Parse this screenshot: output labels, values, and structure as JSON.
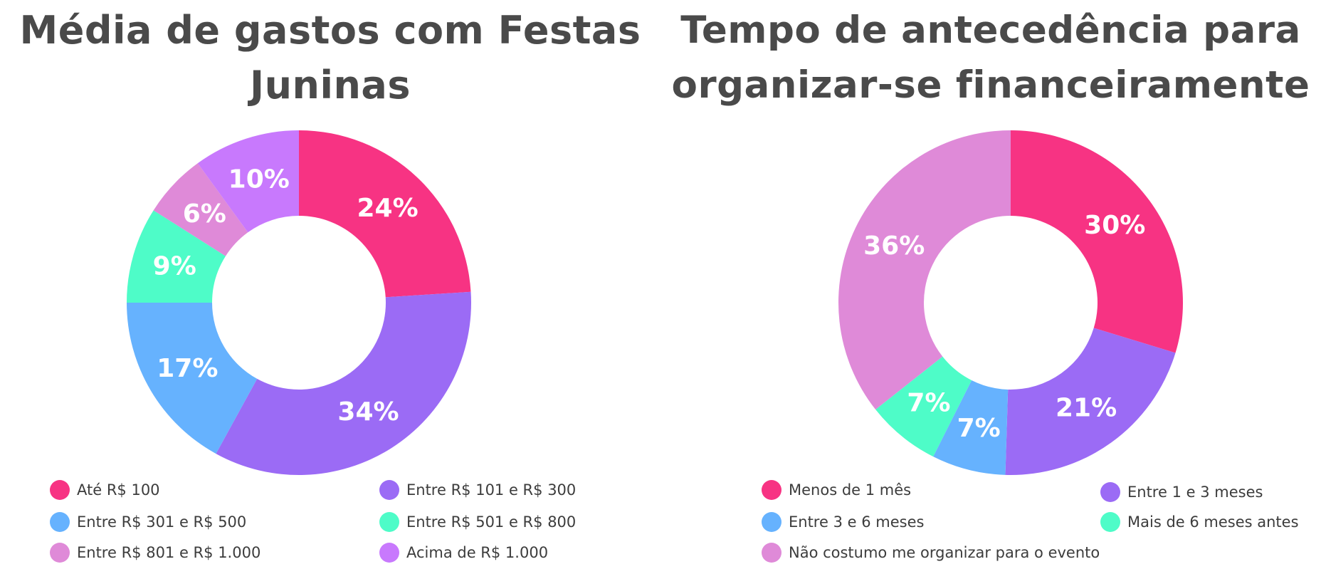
{
  "chart_data": [
    {
      "type": "pie",
      "title": "Média de gastos com Festas Juninas",
      "categories": [
        "Até R$ 100",
        "Entre R$ 101 e R$ 300",
        "Entre R$ 301 e R$ 500",
        "Entre R$ 501 e R$ 800",
        "Entre R$ 801 e R$ 1.000",
        "Acima de R$ 1.000"
      ],
      "values": [
        24,
        34,
        17,
        9,
        6,
        10
      ],
      "value_labels": [
        "24%",
        "34%",
        "17%",
        "9%",
        "6%",
        "10%"
      ],
      "colors": [
        "#f73383",
        "#9b6bf5",
        "#66b2fe",
        "#4efcc8",
        "#df8ad8",
        "#c879fd"
      ],
      "donut": true,
      "legend": "bottom"
    },
    {
      "type": "pie",
      "title": "Tempo de antecedência para organizar-se financeiramente",
      "categories": [
        "Menos de 1 mês",
        "Entre 1 e 3 meses",
        "Entre 3 e 6 meses",
        "Mais de 6 meses antes",
        "Não costumo me organizar para o evento"
      ],
      "values": [
        30,
        21,
        7,
        7,
        36
      ],
      "value_labels": [
        "30%",
        "21%",
        "7%",
        "7%",
        "36%"
      ],
      "colors": [
        "#f73383",
        "#9b6bf5",
        "#66b2fe",
        "#4efcc8",
        "#df8ad8"
      ],
      "donut": true,
      "legend": "bottom"
    }
  ]
}
